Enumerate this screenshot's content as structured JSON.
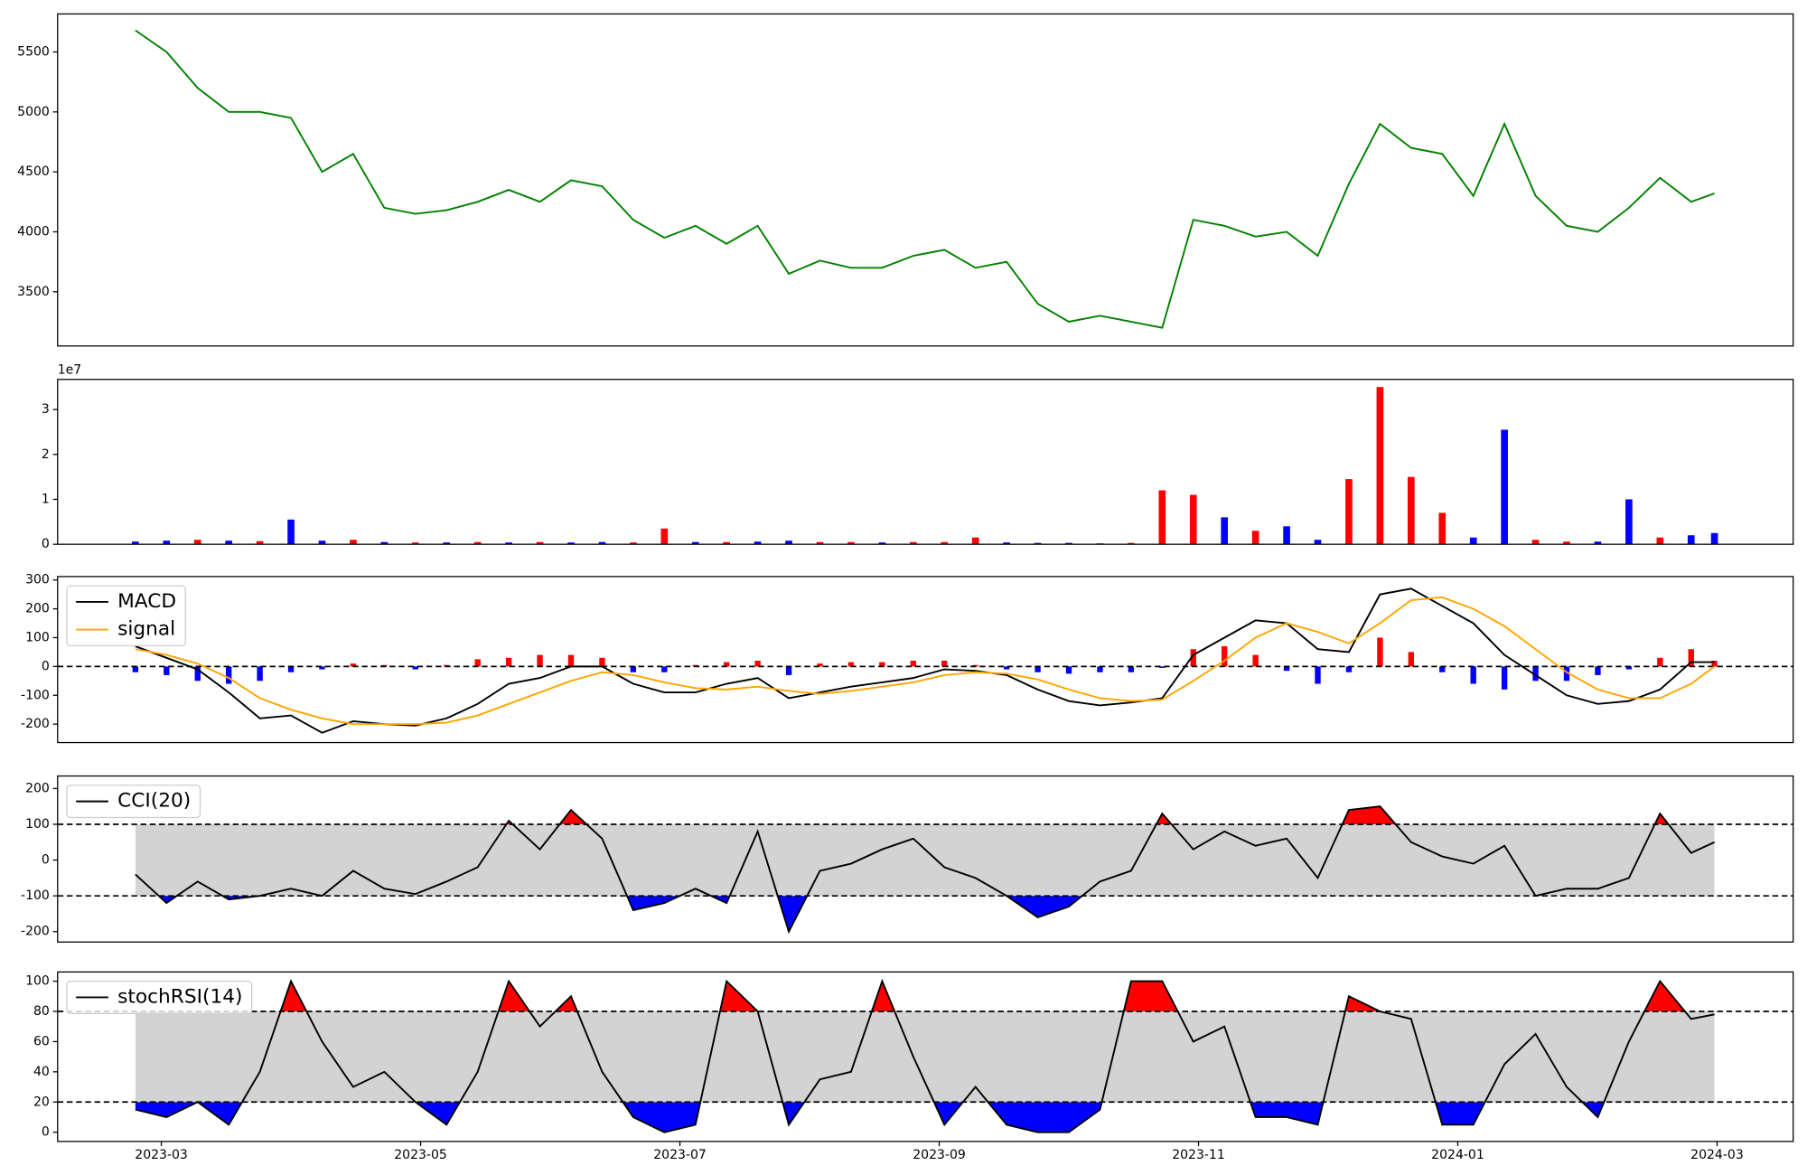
{
  "chart_data": [
    {
      "type": "line",
      "x": [
        -0.2,
        0.04,
        0.28,
        0.52,
        0.76,
        1.0,
        1.24,
        1.48,
        1.72,
        1.96,
        2.2,
        2.44,
        2.68,
        2.92,
        3.16,
        3.4,
        3.64,
        3.88,
        4.12,
        4.36,
        4.6,
        4.84,
        5.08,
        5.32,
        5.56,
        5.8,
        6.04,
        6.28,
        6.52,
        6.76,
        7.0,
        7.24,
        7.48,
        7.72,
        7.96,
        8.2,
        8.44,
        8.68,
        8.92,
        9.16,
        9.4,
        9.64,
        9.88,
        10.12,
        10.36,
        10.6,
        10.84,
        11.08,
        11.32,
        11.56,
        11.8,
        11.98
      ],
      "series": [
        {
          "color": "green",
          "values": [
            5680,
            5500,
            5200,
            5000,
            5000,
            4950,
            4500,
            4650,
            4200,
            4150,
            4180,
            4250,
            4350,
            4250,
            4430,
            4380,
            4100,
            3950,
            4050,
            3900,
            4050,
            3650,
            3760,
            3700,
            3700,
            3800,
            3850,
            3700,
            3750,
            3400,
            3250,
            3300,
            3250,
            3200,
            4100,
            4050,
            3960,
            4000,
            3800,
            4400,
            4900,
            4700,
            4650,
            4300,
            4900,
            4300,
            4050,
            4000,
            4200,
            4450,
            4250,
            4320
          ]
        }
      ],
      "xlim": [
        -0.8,
        12.587
      ],
      "ylim": [
        3048,
        5817
      ],
      "yticks": [
        3500,
        4000,
        4500,
        5000,
        5500
      ]
    },
    {
      "type": "bar",
      "x": [
        -0.2,
        0.04,
        0.28,
        0.52,
        0.76,
        1.0,
        1.24,
        1.48,
        1.72,
        1.96,
        2.2,
        2.44,
        2.68,
        2.92,
        3.16,
        3.4,
        3.64,
        3.88,
        4.12,
        4.36,
        4.6,
        4.84,
        5.08,
        5.32,
        5.56,
        5.8,
        6.04,
        6.28,
        6.52,
        6.76,
        7.0,
        7.24,
        7.48,
        7.72,
        7.96,
        8.2,
        8.44,
        8.68,
        8.92,
        9.16,
        9.4,
        9.64,
        9.88,
        10.12,
        10.36,
        10.6,
        10.84,
        11.08,
        11.32,
        11.56,
        11.8,
        11.98
      ],
      "values": [
        0.06,
        0.08,
        0.1,
        0.08,
        0.07,
        0.55,
        0.08,
        0.1,
        0.05,
        0.04,
        0.04,
        0.05,
        0.04,
        0.05,
        0.04,
        0.05,
        0.04,
        0.35,
        0.05,
        0.05,
        0.06,
        0.08,
        0.05,
        0.05,
        0.04,
        0.05,
        0.05,
        0.15,
        0.04,
        0.03,
        0.03,
        0.02,
        0.03,
        1.2,
        1.1,
        0.6,
        0.3,
        0.4,
        0.1,
        1.45,
        3.5,
        1.5,
        0.7,
        0.15,
        2.55,
        0.1,
        0.06,
        0.06,
        1.0,
        0.15,
        0.2,
        0.25
      ],
      "colors": [
        "blue",
        "blue",
        "red",
        "blue",
        "red",
        "blue",
        "blue",
        "red",
        "blue",
        "red",
        "blue",
        "red",
        "blue",
        "red",
        "blue",
        "blue",
        "red",
        "red",
        "blue",
        "red",
        "blue",
        "blue",
        "red",
        "red",
        "blue",
        "red",
        "red",
        "red",
        "blue",
        "blue",
        "blue",
        "blue",
        "red",
        "red",
        "red",
        "blue",
        "red",
        "blue",
        "blue",
        "red",
        "red",
        "red",
        "red",
        "blue",
        "blue",
        "red",
        "red",
        "blue",
        "blue",
        "red",
        "blue",
        "blue"
      ],
      "offset_label": "1e7",
      "xlim": [
        -0.8,
        12.587
      ],
      "ylim": [
        0,
        3.67
      ],
      "yticks": [
        0,
        1,
        2,
        3
      ]
    },
    {
      "type": "combo",
      "x": [
        -0.2,
        0.04,
        0.28,
        0.52,
        0.76,
        1.0,
        1.24,
        1.48,
        1.72,
        1.96,
        2.2,
        2.44,
        2.68,
        2.92,
        3.16,
        3.4,
        3.64,
        3.88,
        4.12,
        4.36,
        4.6,
        4.84,
        5.08,
        5.32,
        5.56,
        5.8,
        6.04,
        6.28,
        6.52,
        6.76,
        7.0,
        7.24,
        7.48,
        7.72,
        7.96,
        8.2,
        8.44,
        8.68,
        8.92,
        9.16,
        9.4,
        9.64,
        9.88,
        10.12,
        10.36,
        10.6,
        10.84,
        11.08,
        11.32,
        11.56,
        11.8,
        11.98
      ],
      "bars": {
        "positive_color": "red",
        "negative_color": "blue",
        "values": [
          -20,
          -30,
          -50,
          -60,
          -50,
          -20,
          -10,
          10,
          5,
          -10,
          5,
          25,
          30,
          40,
          40,
          30,
          -20,
          -20,
          5,
          15,
          20,
          -30,
          10,
          15,
          15,
          20,
          20,
          5,
          -10,
          -20,
          -25,
          -20,
          -20,
          -5,
          60,
          70,
          40,
          -15,
          -60,
          -20,
          100,
          50,
          -20,
          -60,
          -80,
          -50,
          -50,
          -30,
          -10,
          30,
          60,
          20
        ]
      },
      "series": [
        {
          "name": "MACD",
          "color": "black",
          "values": [
            70,
            30,
            -10,
            -90,
            -180,
            -170,
            -230,
            -190,
            -200,
            -205,
            -180,
            -130,
            -60,
            -40,
            0,
            0,
            -60,
            -90,
            -90,
            -60,
            -40,
            -110,
            -90,
            -70,
            -55,
            -40,
            -10,
            -15,
            -30,
            -80,
            -120,
            -135,
            -125,
            -110,
            40,
            100,
            160,
            150,
            60,
            50,
            250,
            270,
            210,
            150,
            40,
            -30,
            -100,
            -130,
            -120,
            -80,
            15,
            15
          ]
        },
        {
          "name": "signal",
          "color": "orange",
          "values": [
            60,
            40,
            10,
            -40,
            -110,
            -150,
            -180,
            -200,
            -200,
            -200,
            -195,
            -170,
            -130,
            -90,
            -50,
            -20,
            -30,
            -55,
            -75,
            -80,
            -70,
            -85,
            -95,
            -85,
            -70,
            -55,
            -30,
            -20,
            -25,
            -45,
            -80,
            -110,
            -120,
            -115,
            -50,
            20,
            100,
            150,
            120,
            80,
            150,
            230,
            240,
            200,
            140,
            60,
            -20,
            -80,
            -110,
            -110,
            -60,
            0
          ]
        }
      ],
      "hline": 0,
      "legend": "upper left",
      "xlim": [
        -0.8,
        12.587
      ],
      "ylim": [
        -264,
        312
      ],
      "yticks": [
        -200,
        -100,
        0,
        100,
        200,
        300
      ]
    },
    {
      "type": "oscillator",
      "x": [
        -0.2,
        0.04,
        0.28,
        0.52,
        0.76,
        1.0,
        1.24,
        1.48,
        1.72,
        1.96,
        2.2,
        2.44,
        2.68,
        2.92,
        3.16,
        3.4,
        3.64,
        3.88,
        4.12,
        4.36,
        4.6,
        4.84,
        5.08,
        5.32,
        5.56,
        5.8,
        6.04,
        6.28,
        6.52,
        6.76,
        7.0,
        7.24,
        7.48,
        7.72,
        7.96,
        8.2,
        8.44,
        8.68,
        8.92,
        9.16,
        9.4,
        9.64,
        9.88,
        10.12,
        10.36,
        10.6,
        10.84,
        11.08,
        11.32,
        11.56,
        11.8,
        11.98
      ],
      "series": [
        {
          "name": "CCI(20)",
          "color": "black",
          "values": [
            -40,
            -120,
            -60,
            -110,
            -100,
            -80,
            -100,
            -30,
            -80,
            -95,
            -60,
            -20,
            110,
            30,
            140,
            60,
            -140,
            -120,
            -80,
            -120,
            80,
            -200,
            -30,
            -10,
            30,
            60,
            -20,
            -50,
            -100,
            -160,
            -130,
            -60,
            -30,
            130,
            30,
            80,
            40,
            60,
            -50,
            140,
            150,
            50,
            10,
            -10,
            40,
            -100,
            -80,
            -80,
            -50,
            130,
            20,
            50
          ]
        }
      ],
      "upper": 100,
      "lower": -100,
      "upper_color": "red",
      "lower_color": "blue",
      "band_color": "lightgray",
      "legend": "upper left",
      "xlim": [
        -0.8,
        12.587
      ],
      "ylim": [
        -229,
        235
      ],
      "yticks": [
        -200,
        -100,
        0,
        100,
        200
      ]
    },
    {
      "type": "oscillator",
      "x": [
        -0.2,
        0.04,
        0.28,
        0.52,
        0.76,
        1.0,
        1.24,
        1.48,
        1.72,
        1.96,
        2.2,
        2.44,
        2.68,
        2.92,
        3.16,
        3.4,
        3.64,
        3.88,
        4.12,
        4.36,
        4.6,
        4.84,
        5.08,
        5.32,
        5.56,
        5.8,
        6.04,
        6.28,
        6.52,
        6.76,
        7.0,
        7.24,
        7.48,
        7.72,
        7.96,
        8.2,
        8.44,
        8.68,
        8.92,
        9.16,
        9.4,
        9.64,
        9.88,
        10.12,
        10.36,
        10.6,
        10.84,
        11.08,
        11.32,
        11.56,
        11.8,
        11.98
      ],
      "series": [
        {
          "name": "stochRSI(14)",
          "color": "black",
          "values": [
            15,
            10,
            20,
            5,
            40,
            100,
            60,
            30,
            40,
            20,
            5,
            40,
            100,
            70,
            90,
            40,
            10,
            0,
            5,
            100,
            80,
            5,
            35,
            40,
            100,
            50,
            5,
            30,
            5,
            0,
            0,
            15,
            100,
            100,
            60,
            70,
            10,
            10,
            5,
            90,
            80,
            75,
            5,
            5,
            45,
            65,
            30,
            10,
            60,
            100,
            75,
            78
          ]
        }
      ],
      "upper": 80,
      "lower": 20,
      "upper_color": "red",
      "lower_color": "blue",
      "band_color": "lightgray",
      "legend": "upper left",
      "xlim": [
        -0.8,
        12.587
      ],
      "ylim": [
        -6.1,
        106.1
      ],
      "yticks": [
        0,
        20,
        40,
        60,
        80,
        100
      ],
      "xticks": [
        {
          "value": 0,
          "label": "2023-03"
        },
        {
          "value": 2,
          "label": "2023-05"
        },
        {
          "value": 4,
          "label": "2023-07"
        },
        {
          "value": 6,
          "label": "2023-09"
        },
        {
          "value": 8,
          "label": "2023-11"
        },
        {
          "value": 10,
          "label": "2024-01"
        },
        {
          "value": 12,
          "label": "2024-03"
        }
      ]
    }
  ]
}
